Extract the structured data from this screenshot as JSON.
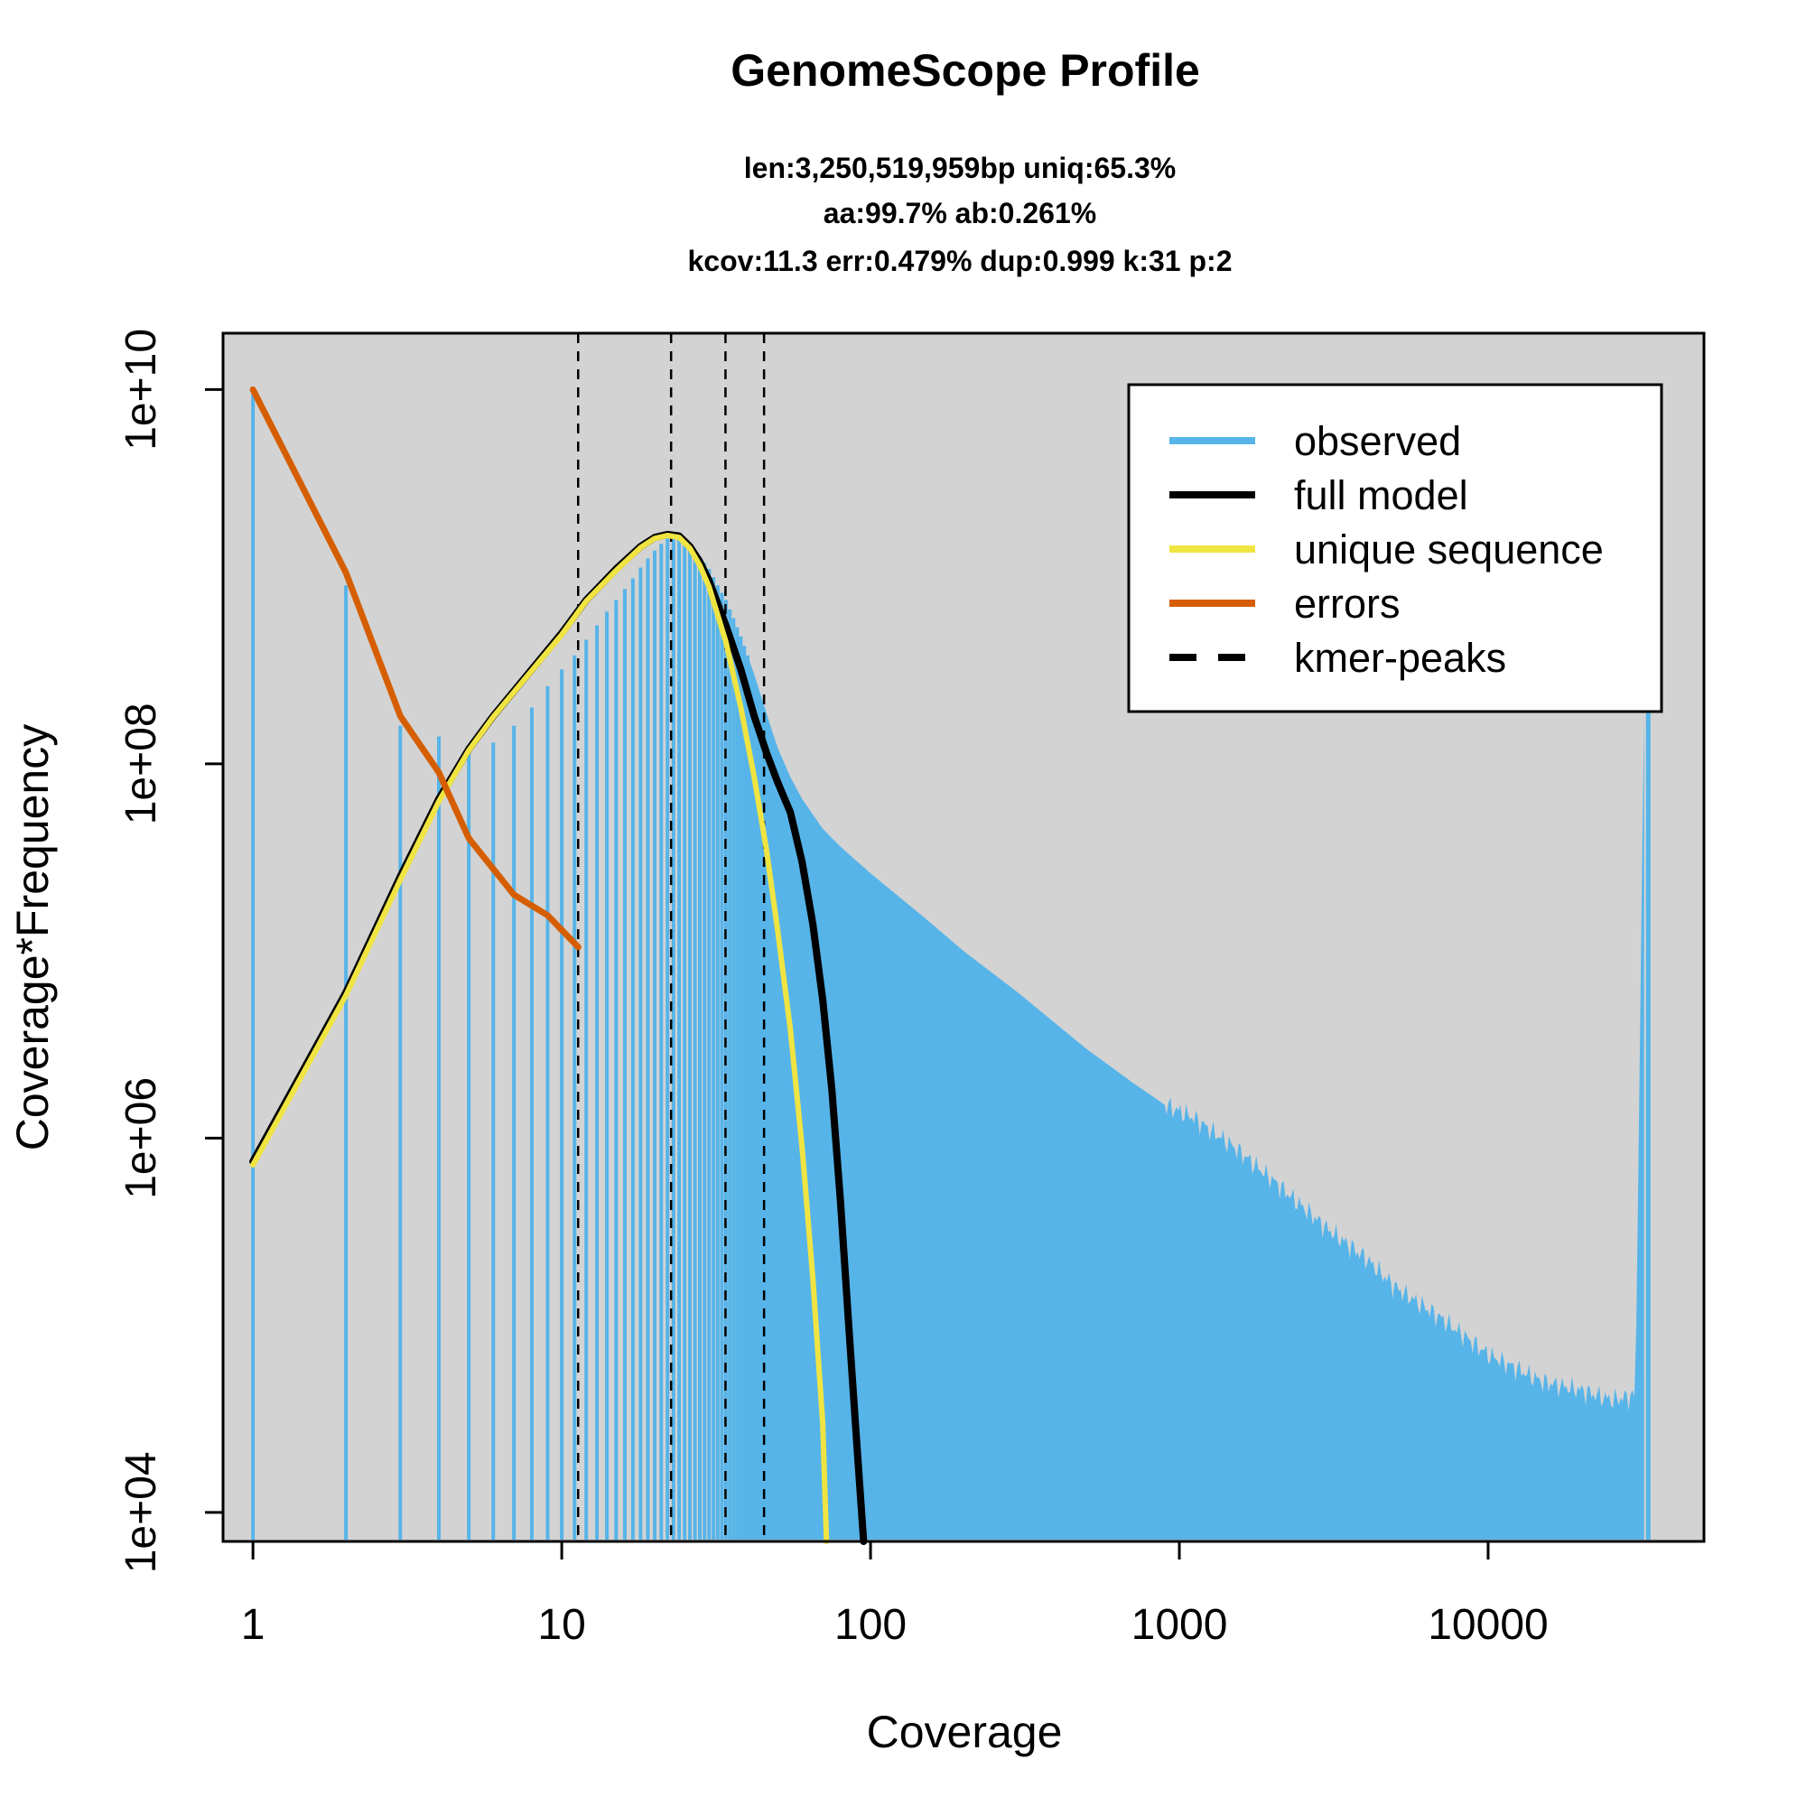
{
  "chart_data": {
    "type": "line",
    "title": "GenomeScope Profile",
    "subtitle_lines": [
      "len:3,250,519,959bp uniq:65.3%",
      "aa:99.7% ab:0.261%",
      "kcov:11.3 err:0.479%  dup:0.999  k:31 p:2"
    ],
    "xlabel": "Coverage",
    "ylabel": "Coverage*Frequency",
    "x_scale": "log",
    "y_scale": "log",
    "xlim": [
      0.8,
      50000
    ],
    "ylim": [
      7000,
      20000000000
    ],
    "x_ticks": [
      {
        "value": 1,
        "label": "1"
      },
      {
        "value": 10,
        "label": "10"
      },
      {
        "value": 100,
        "label": "100"
      },
      {
        "value": 1000,
        "label": "1000"
      },
      {
        "value": 10000,
        "label": "10000"
      }
    ],
    "y_ticks": [
      {
        "value": 10000,
        "label": "1e+04"
      },
      {
        "value": 1000000,
        "label": "1e+06"
      },
      {
        "value": 100000000,
        "label": "1e+08"
      },
      {
        "value": 10000000000,
        "label": "1e+10"
      }
    ],
    "background": "#d3d3d3",
    "legend_position": "top-right",
    "legend": [
      {
        "label": "observed",
        "color": "#56b4e9",
        "style": "solid"
      },
      {
        "label": "full model",
        "color": "#000000",
        "style": "solid"
      },
      {
        "label": "unique sequence",
        "color": "#f0e442",
        "style": "solid"
      },
      {
        "label": "errors",
        "color": "#d55e00",
        "style": "solid"
      },
      {
        "label": "kmer-peaks",
        "color": "#000000",
        "style": "dashed"
      }
    ],
    "kmer_peaks": [
      11.3,
      22.6,
      33.9,
      45.2
    ],
    "observed": {
      "color": "#56b4e9",
      "points": [
        [
          1,
          9500000000.0
        ],
        [
          2,
          900000000.0
        ],
        [
          3,
          160000000.0
        ],
        [
          4,
          140000000.0
        ],
        [
          5,
          125000000.0
        ],
        [
          6,
          130000000.0
        ],
        [
          7,
          160000000.0
        ],
        [
          8,
          200000000.0
        ],
        [
          9,
          260000000.0
        ],
        [
          10,
          320000000.0
        ],
        [
          11,
          380000000.0
        ],
        [
          12,
          460000000.0
        ],
        [
          13,
          550000000.0
        ],
        [
          14,
          650000000.0
        ],
        [
          15,
          750000000.0
        ],
        [
          16,
          860000000.0
        ],
        [
          17,
          980000000.0
        ],
        [
          18,
          1120000000.0
        ],
        [
          19,
          1250000000.0
        ],
        [
          20,
          1380000000.0
        ],
        [
          21,
          1500000000.0
        ],
        [
          22,
          1600000000.0
        ],
        [
          23,
          1620000000.0
        ],
        [
          24,
          1600000000.0
        ],
        [
          25,
          1550000000.0
        ],
        [
          26,
          1470000000.0
        ],
        [
          27,
          1380000000.0
        ],
        [
          28,
          1280000000.0
        ],
        [
          30,
          1100000000.0
        ],
        [
          32,
          900000000.0
        ],
        [
          34,
          750000000.0
        ],
        [
          36,
          600000000.0
        ],
        [
          38,
          480000000.0
        ],
        [
          40,
          380000000.0
        ],
        [
          42,
          300000000.0
        ],
        [
          45,
          210000000.0
        ],
        [
          48,
          150000000.0
        ],
        [
          50,
          122000000.0
        ],
        [
          55,
          85000000.0
        ],
        [
          60,
          65000000.0
        ],
        [
          70,
          45000000.0
        ],
        [
          80,
          36000000.0
        ],
        [
          100,
          26000000.0
        ],
        [
          150,
          15000000.0
        ],
        [
          200,
          10000000.0
        ],
        [
          300,
          6000000.0
        ],
        [
          500,
          3000000.0
        ],
        [
          700,
          2000000.0
        ],
        [
          900,
          1500000.0
        ],
        [
          1100,
          1300000.0
        ],
        [
          1500,
          900000.0
        ],
        [
          2000,
          600000.0
        ],
        [
          3000,
          330000.0
        ],
        [
          4000,
          230000.0
        ],
        [
          5000,
          160000.0
        ],
        [
          7000,
          110000.0
        ],
        [
          10000,
          70000.0
        ],
        [
          15000,
          50000.0
        ],
        [
          20000,
          45000.0
        ],
        [
          25000,
          40000.0
        ],
        [
          30000,
          42000.0
        ],
        [
          33000,
          10500000000.0
        ]
      ]
    },
    "full_model": {
      "color": "#000000",
      "points": [
        [
          1,
          750000.0
        ],
        [
          2,
          6000000.0
        ],
        [
          3,
          25000000.0
        ],
        [
          4,
          65000000.0
        ],
        [
          5,
          120000000.0
        ],
        [
          6,
          180000000.0
        ],
        [
          8,
          320000000.0
        ],
        [
          10,
          500000000.0
        ],
        [
          12,
          750000000.0
        ],
        [
          15,
          1100000000.0
        ],
        [
          18,
          1450000000.0
        ],
        [
          20,
          1620000000.0
        ],
        [
          22,
          1680000000.0
        ],
        [
          24,
          1650000000.0
        ],
        [
          26,
          1450000000.0
        ],
        [
          28,
          1200000000.0
        ],
        [
          30,
          950000000.0
        ],
        [
          34,
          550000000.0
        ],
        [
          38,
          320000000.0
        ],
        [
          42,
          180000000.0
        ],
        [
          46,
          115000000.0
        ],
        [
          50,
          80000000.0
        ],
        [
          55,
          55000000.0
        ],
        [
          60,
          30000000.0
        ],
        [
          65,
          14000000.0
        ],
        [
          70,
          5500000.0
        ],
        [
          75,
          1800000.0
        ],
        [
          80,
          450000.0
        ],
        [
          85,
          100000.0
        ],
        [
          90,
          25000.0
        ],
        [
          95,
          7000.0
        ]
      ]
    },
    "unique_sequence": {
      "color": "#f0e442",
      "points": [
        [
          1,
          720000.0
        ],
        [
          2,
          5800000.0
        ],
        [
          3,
          24000000.0
        ],
        [
          4,
          63000000.0
        ],
        [
          5,
          118000000.0
        ],
        [
          6,
          178000000.0
        ],
        [
          8,
          315000000.0
        ],
        [
          10,
          490000000.0
        ],
        [
          12,
          740000000.0
        ],
        [
          15,
          1080000000.0
        ],
        [
          18,
          1430000000.0
        ],
        [
          20,
          1600000000.0
        ],
        [
          22,
          1660000000.0
        ],
        [
          24,
          1620000000.0
        ],
        [
          26,
          1420000000.0
        ],
        [
          28,
          1150000000.0
        ],
        [
          30,
          880000000.0
        ],
        [
          34,
          450000000.0
        ],
        [
          38,
          200000000.0
        ],
        [
          42,
          85000000.0
        ],
        [
          46,
          35000000.0
        ],
        [
          50,
          13000000.0
        ],
        [
          55,
          3800000.0
        ],
        [
          60,
          900000.0
        ],
        [
          65,
          180000.0
        ],
        [
          70,
          30000.0
        ],
        [
          72,
          7000.0
        ]
      ]
    },
    "errors": {
      "color": "#d55e00",
      "points": [
        [
          1,
          10000000000.0
        ],
        [
          2,
          1050000000.0
        ],
        [
          3,
          180000000.0
        ],
        [
          4,
          90000000.0
        ],
        [
          5,
          40000000.0
        ],
        [
          7,
          20000000.0
        ],
        [
          9,
          15500000.0
        ],
        [
          11.3,
          10500000.0
        ]
      ]
    }
  }
}
